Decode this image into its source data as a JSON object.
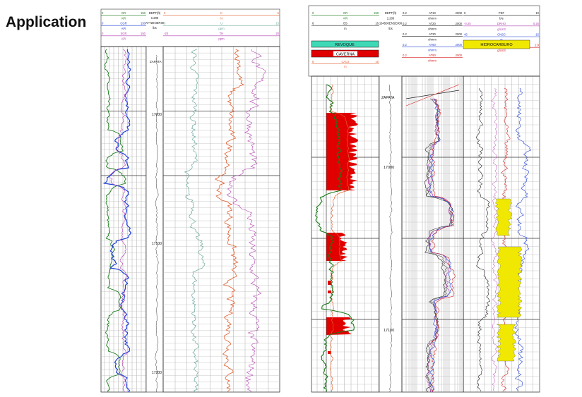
{
  "slide": {
    "title": "Application"
  },
  "left_log": {
    "header_rows": [
      {
        "left": "0",
        "label": "GR",
        "right": "150",
        "color": "#1a7a1a"
      },
      {
        "left": "",
        "label": "API",
        "right": "",
        "color": "#1a7a1a"
      },
      {
        "left": "0",
        "label": "CGR",
        "right": "150",
        "color": "#1f3fd6"
      },
      {
        "left": "",
        "label": "API",
        "right": "",
        "color": "#1f3fd6"
      },
      {
        "left": "0",
        "label": "SGR",
        "right": "150",
        "color": "#b03cb0"
      },
      {
        "left": "",
        "label": "API",
        "right": "",
        "color": "#b03cb0"
      }
    ],
    "depth_header": [
      "DEPT(ft)",
      "1:200",
      "ATT2ENEP30",
      "lbs"
    ],
    "right_header_rows": [
      {
        "left": "0",
        "label": "K",
        "right": "5",
        "color": "#e06030"
      },
      {
        "left": "",
        "label": "%",
        "right": "",
        "color": "#e06030"
      },
      {
        "left": "0",
        "label": "U",
        "right": "15",
        "color": "#6aa79a"
      },
      {
        "left": "",
        "label": "ppm",
        "right": "",
        "color": "#6aa79a"
      },
      {
        "left": "-20",
        "label": "TH",
        "right": "20",
        "color": "#b03cb0"
      },
      {
        "left": "",
        "label": "ppm",
        "right": "",
        "color": "#b03cb0"
      }
    ],
    "depth_labels": [
      "ZAPATA",
      "17000",
      "17100",
      "17200"
    ]
  },
  "right_log": {
    "track1_header": [
      {
        "left": "0",
        "label": "GR",
        "right": "150",
        "color": "#1a7a1a"
      },
      {
        "left": "",
        "label": "API",
        "right": "",
        "color": "#1a7a1a"
      },
      {
        "left": "6",
        "label": "BS",
        "right": "16",
        "color": "#222222"
      },
      {
        "left": "",
        "label": "in",
        "right": "",
        "color": "#222222"
      },
      {
        "left": "6",
        "label": "CALS",
        "right": "16",
        "color": "#e06030"
      },
      {
        "left": "",
        "label": "in",
        "right": "",
        "color": "#e06030"
      }
    ],
    "revoque_label": "REVOQUE",
    "caverna_label": "CAVERNA",
    "depth_header": [
      "DEPT(ft)",
      "1:200",
      "164500ENSE000",
      "lbs"
    ],
    "resist_header": [
      {
        "left": "0.2",
        "label": "AT10",
        "right": "2000",
        "color": "#222222"
      },
      {
        "left": "",
        "label": "ohmm",
        "right": "",
        "color": "#222222"
      },
      {
        "left": "0.2",
        "label": "AT20",
        "right": "2000",
        "color": "#222222"
      },
      {
        "left": "",
        "label": "ohmm",
        "right": "",
        "color": "#222222"
      },
      {
        "left": "0.2",
        "label": "AT30",
        "right": "2000",
        "color": "#222222"
      },
      {
        "left": "",
        "label": "ohmm",
        "right": "",
        "color": "#222222"
      },
      {
        "left": "0.2",
        "label": "AT60",
        "right": "2000",
        "color": "#1f3fd6"
      },
      {
        "left": "",
        "label": "ohmm",
        "right": "",
        "color": "#1f3fd6"
      },
      {
        "left": "0.2",
        "label": "AT90",
        "right": "2000",
        "color": "#d62020"
      },
      {
        "left": "",
        "label": "ohmm",
        "right": "",
        "color": "#d62020"
      }
    ],
    "poro_header": [
      {
        "left": "0",
        "label": "PEF",
        "right": "10",
        "color": "#222222"
      },
      {
        "left": "",
        "label": "b/e",
        "right": "",
        "color": "#222222"
      },
      {
        "left": "-0.25",
        "label": "DRHO",
        "right": "0.25",
        "color": "#b03cb0"
      },
      {
        "left": "",
        "label": "g/cm3",
        "right": "",
        "color": "#b03cb0"
      },
      {
        "left": "45",
        "label": "CNSC",
        "right": "-15",
        "color": "#1f3fd6"
      },
      {
        "left": "",
        "label": "%",
        "right": "",
        "color": "#1f3fd6"
      },
      {
        "left": "1.9",
        "label": "RHOB",
        "right": "2.9",
        "color": "#d62020"
      },
      {
        "left": "",
        "label": "g/cm3",
        "right": "",
        "color": "#d62020"
      }
    ],
    "hidrocarburo_label": "HIDROCARBURO",
    "depth_labels": [
      "ZAPATA",
      "17000",
      "17100"
    ]
  },
  "colors": {
    "gr": "#1a7a1a",
    "cgr": "#1f3fd6",
    "sgr": "#b03cb0",
    "k": "#e06030",
    "u": "#6aa79a",
    "red": "#e00000",
    "cyan": "#3fd9b6",
    "yellow": "#f0e800"
  }
}
